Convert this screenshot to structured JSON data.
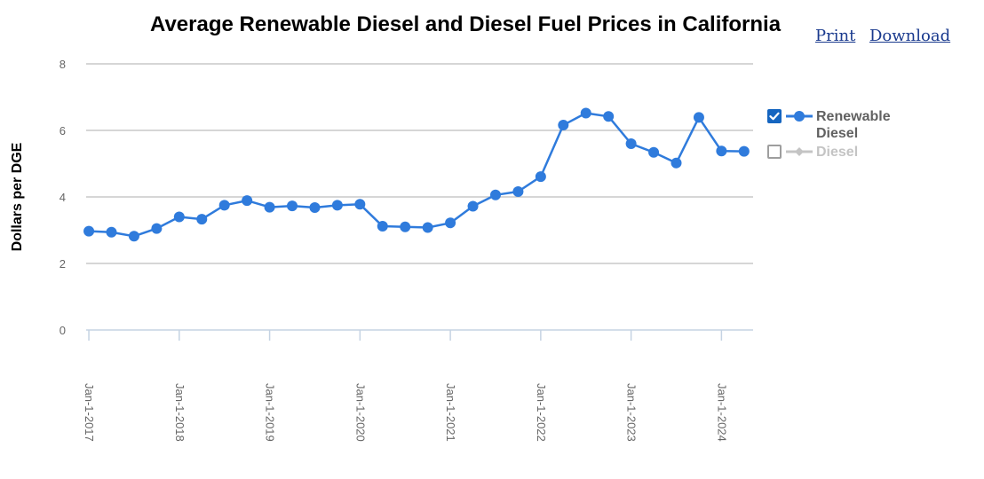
{
  "page": {
    "print_label": "Print",
    "download_label": "Download"
  },
  "colors": {
    "series": "#2f7bdc",
    "grid": "#c8c8c8",
    "axis_text": "#666666",
    "checkbox_on": "#1565c0",
    "disabled": "#c4c4c4"
  },
  "chart_data": {
    "type": "line",
    "title": "Average Renewable Diesel and Diesel Fuel Prices in California",
    "ylabel": "Dollars per DGE",
    "xlabel": "",
    "ylim": [
      0,
      8
    ],
    "yticks": [
      0,
      2,
      4,
      6,
      8
    ],
    "xlim": [
      2016.97,
      2024.35
    ],
    "xticks": [
      {
        "value": 2017,
        "label": "Jan-1-2017"
      },
      {
        "value": 2018,
        "label": "Jan-1-2018"
      },
      {
        "value": 2019,
        "label": "Jan-1-2019"
      },
      {
        "value": 2020,
        "label": "Jan-1-2020"
      },
      {
        "value": 2021,
        "label": "Jan-1-2021"
      },
      {
        "value": 2022,
        "label": "Jan-1-2022"
      },
      {
        "value": 2023,
        "label": "Jan-1-2023"
      },
      {
        "value": 2024,
        "label": "Jan-1-2024"
      }
    ],
    "legend_position": "right",
    "series": [
      {
        "name": "Renewable Diesel",
        "enabled": true,
        "points": [
          {
            "x": 2017.0,
            "y": 2.97
          },
          {
            "x": 2017.25,
            "y": 2.94
          },
          {
            "x": 2017.5,
            "y": 2.82
          },
          {
            "x": 2017.75,
            "y": 3.05
          },
          {
            "x": 2018.0,
            "y": 3.4
          },
          {
            "x": 2018.25,
            "y": 3.33
          },
          {
            "x": 2018.5,
            "y": 3.75
          },
          {
            "x": 2018.75,
            "y": 3.89
          },
          {
            "x": 2019.0,
            "y": 3.69
          },
          {
            "x": 2019.25,
            "y": 3.73
          },
          {
            "x": 2019.5,
            "y": 3.68
          },
          {
            "x": 2019.75,
            "y": 3.75
          },
          {
            "x": 2020.0,
            "y": 3.78
          },
          {
            "x": 2020.25,
            "y": 3.12
          },
          {
            "x": 2020.5,
            "y": 3.1
          },
          {
            "x": 2020.75,
            "y": 3.08
          },
          {
            "x": 2021.0,
            "y": 3.22
          },
          {
            "x": 2021.25,
            "y": 3.72
          },
          {
            "x": 2021.5,
            "y": 4.06
          },
          {
            "x": 2021.75,
            "y": 4.16
          },
          {
            "x": 2022.0,
            "y": 4.61
          },
          {
            "x": 2022.25,
            "y": 6.16
          },
          {
            "x": 2022.5,
            "y": 6.52
          },
          {
            "x": 2022.75,
            "y": 6.42
          },
          {
            "x": 2023.0,
            "y": 5.6
          },
          {
            "x": 2023.25,
            "y": 5.34
          },
          {
            "x": 2023.5,
            "y": 5.02
          },
          {
            "x": 2023.75,
            "y": 6.39
          },
          {
            "x": 2024.0,
            "y": 5.38
          },
          {
            "x": 2024.25,
            "y": 5.37
          }
        ]
      },
      {
        "name": "Diesel",
        "enabled": false,
        "points": []
      }
    ]
  }
}
